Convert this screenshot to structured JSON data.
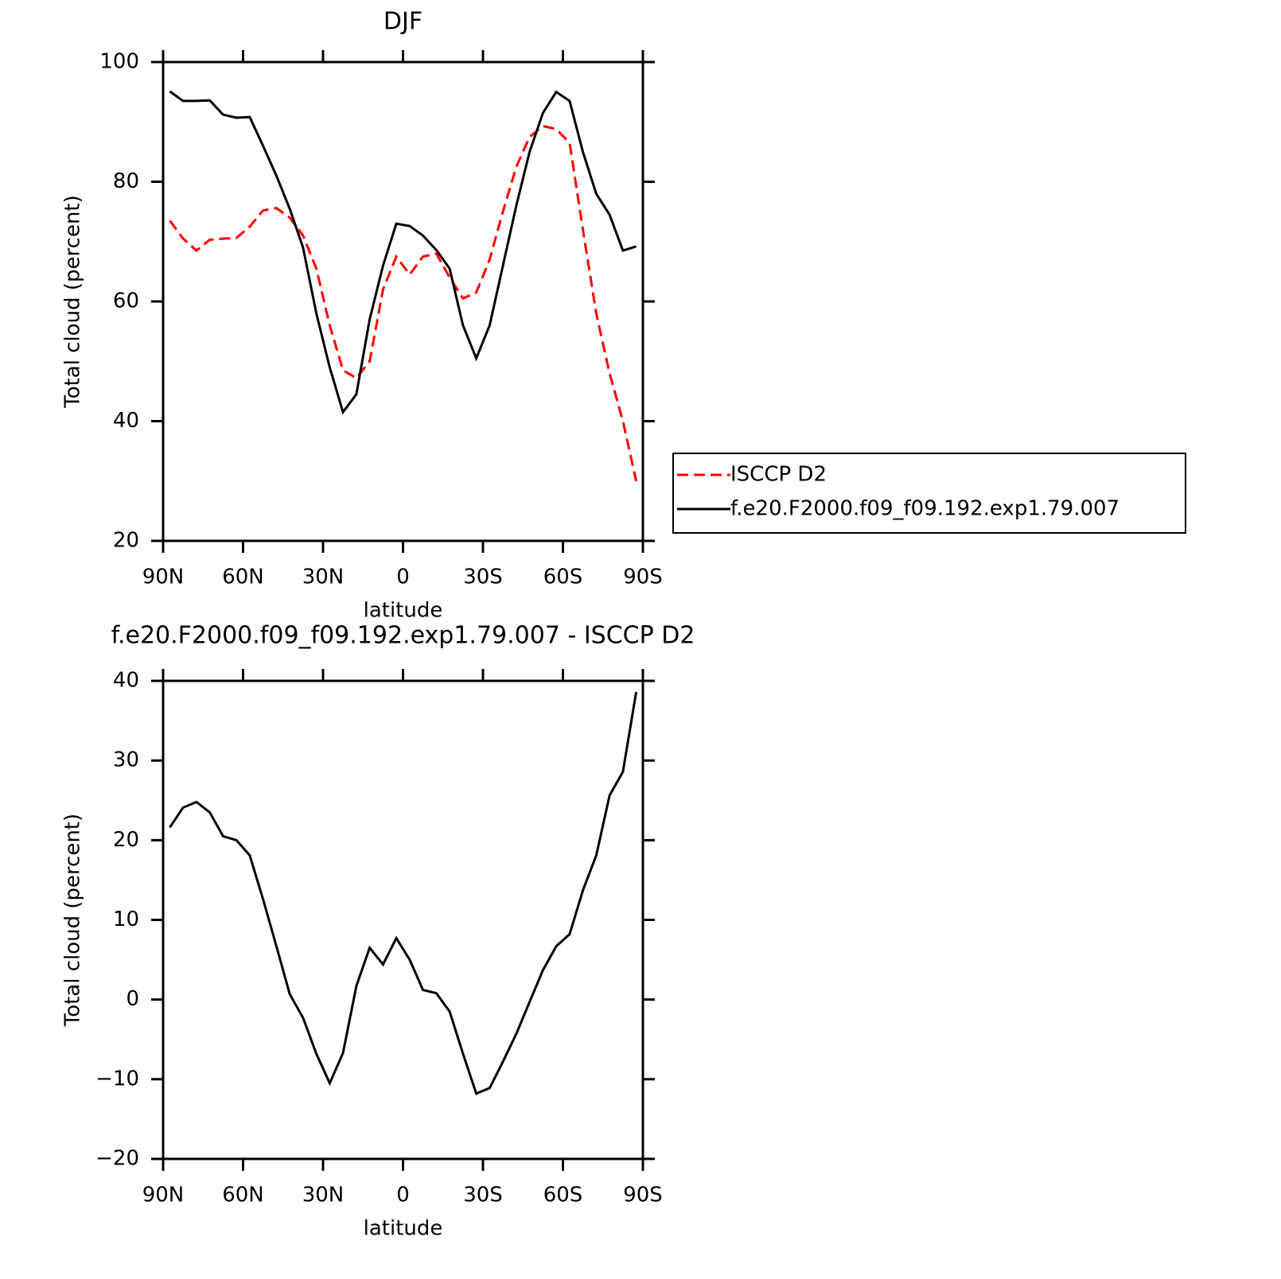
{
  "chart_data": [
    {
      "type": "line",
      "title": "DJF",
      "xlabel": "latitude",
      "ylabel": "Total cloud (percent)",
      "x": [
        87.5,
        82.5,
        77.5,
        72.5,
        67.5,
        62.5,
        57.5,
        52.5,
        47.5,
        42.5,
        37.5,
        32.5,
        27.5,
        22.5,
        17.5,
        12.5,
        7.5,
        2.5,
        -2.5,
        -7.5,
        -12.5,
        -17.5,
        -22.5,
        -27.5,
        -32.5,
        -37.5,
        -42.5,
        -47.5,
        -52.5,
        -57.5,
        -62.5,
        -67.5,
        -72.5,
        -77.5,
        -82.5,
        -87.5
      ],
      "series": [
        {
          "name": "ISCCP D2",
          "color": "#ff0000",
          "line_style": "dashed",
          "values": [
            73.5,
            70.5,
            68.5,
            70.3,
            70.5,
            70.6,
            72.5,
            75.2,
            75.6,
            74,
            71,
            65.5,
            56,
            48.5,
            47.2,
            50,
            62,
            67.5,
            64.5,
            67.5,
            68,
            64,
            60.5,
            61.5,
            67,
            75,
            82.5,
            87.5,
            89.3,
            88.8,
            86.5,
            72,
            58,
            48,
            40,
            30
          ]
        },
        {
          "name": "f.e20.F2000.f09_f09.192.exp1.79.007",
          "color": "#000000",
          "line_style": "solid",
          "values": [
            95.1,
            93.5,
            93.5,
            93.6,
            91.2,
            90.7,
            90.8,
            86,
            81,
            75.5,
            69,
            58,
            49,
            41.5,
            44.5,
            57,
            66,
            73,
            72.6,
            71,
            68.6,
            65.5,
            56,
            50.5,
            56,
            66,
            76,
            85,
            91.5,
            95,
            93.5,
            85,
            78,
            74.5,
            68.5,
            69.2
          ]
        }
      ],
      "xlim": [
        90,
        -90
      ],
      "xticks": [
        {
          "value": 90,
          "label": "90N"
        },
        {
          "value": 60,
          "label": "60N"
        },
        {
          "value": 30,
          "label": "30N"
        },
        0,
        {
          "value": -30,
          "label": "30S"
        },
        {
          "value": -60,
          "label": "60S"
        },
        {
          "value": -90,
          "label": "90S"
        }
      ],
      "ylim": [
        20,
        100
      ],
      "yticks": [
        20,
        40,
        60,
        80,
        100
      ],
      "legend": "outside-right"
    },
    {
      "type": "line",
      "title": "f.e20.F2000.f09_f09.192.exp1.79.007 - ISCCP D2",
      "xlabel": "latitude",
      "ylabel": "Total cloud (percent)",
      "x": [
        87.5,
        82.5,
        77.5,
        72.5,
        67.5,
        62.5,
        57.5,
        52.5,
        47.5,
        42.5,
        37.5,
        32.5,
        27.5,
        22.5,
        17.5,
        12.5,
        7.5,
        2.5,
        -2.5,
        -7.5,
        -12.5,
        -17.5,
        -22.5,
        -27.5,
        -32.5,
        -37.5,
        -42.5,
        -47.5,
        -52.5,
        -57.5,
        -62.5,
        -67.5,
        -72.5,
        -77.5,
        -82.5,
        -87.5
      ],
      "series": [
        {
          "color": "#000000",
          "line_style": "solid",
          "values": [
            21.6,
            24.1,
            24.8,
            23.5,
            20.5,
            20,
            18.1,
            12.6,
            6.7,
            0.7,
            -2.3,
            -6.8,
            -10.5,
            -6.7,
            1.7,
            6.5,
            4.4,
            7.7,
            5,
            1.2,
            0.8,
            -1.5,
            -6.8,
            -11.8,
            -11.1,
            -7.8,
            -4.3,
            -0.3,
            3.7,
            6.7,
            8.2,
            13.7,
            18.1,
            25.6,
            28.6,
            38.6
          ]
        }
      ],
      "xlim": [
        90,
        -90
      ],
      "xticks": [
        {
          "value": 90,
          "label": "90N"
        },
        {
          "value": 60,
          "label": "60N"
        },
        {
          "value": 30,
          "label": "30N"
        },
        0,
        {
          "value": -30,
          "label": "30S"
        },
        {
          "value": -60,
          "label": "60S"
        },
        {
          "value": -90,
          "label": "90S"
        }
      ],
      "ylim": [
        -20,
        40
      ],
      "yticks": [
        {
          "value": -20,
          "label": "−20"
        },
        {
          "value": -10,
          "label": "−10"
        },
        0,
        10,
        20,
        30,
        40
      ]
    }
  ]
}
